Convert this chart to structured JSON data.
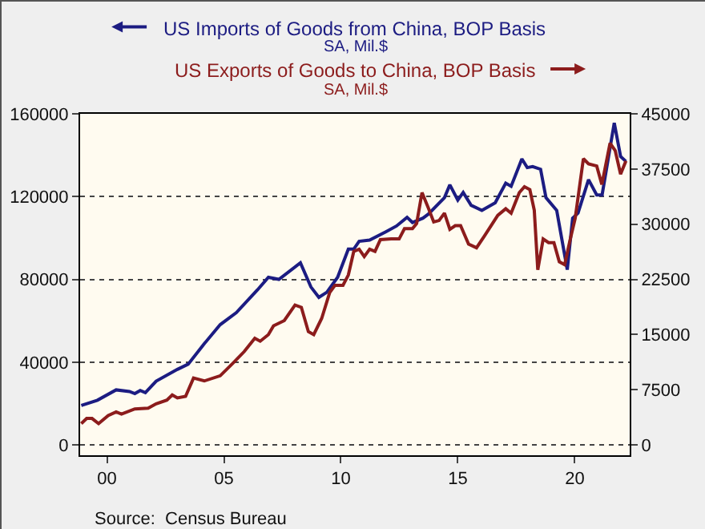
{
  "chart_data": {
    "type": "line",
    "series": [
      {
        "name": "US Imports of Goods from China, BOP Basis",
        "color": "#1c1c82",
        "x": [
          1998.9,
          1999.59,
          2000.39,
          2000.96,
          2001.19,
          2001.42,
          2001.64,
          2002.1,
          2003.01,
          2003.47,
          2004.16,
          2004.84,
          2005.53,
          2006.44,
          2006.9,
          2007.35,
          2008.27,
          2008.72,
          2009.06,
          2009.4,
          2009.86,
          2010.32,
          2010.55,
          2010.78,
          2011.23,
          2011.92,
          2012.38,
          2012.83,
          2013.06,
          2013.51,
          2013.74,
          2014.43,
          2014.66,
          2015.0,
          2015.23,
          2015.57,
          2016.03,
          2016.6,
          2017.05,
          2017.28,
          2017.74,
          2017.97,
          2018.2,
          2018.54,
          2018.77,
          2019.23,
          2019.68,
          2019.91,
          2020.14,
          2020.59,
          2020.94,
          2021.17,
          2021.69,
          2021.96,
          2022.19
        ],
        "values": [
          19100,
          21600,
          26600,
          25800,
          24800,
          26300,
          25300,
          30800,
          36500,
          39000,
          48900,
          58100,
          63900,
          75000,
          81000,
          80000,
          88000,
          76300,
          71300,
          73800,
          81000,
          94600,
          94600,
          98400,
          99000,
          103000,
          105800,
          110000,
          107500,
          109600,
          111500,
          119500,
          125700,
          118300,
          122000,
          115800,
          113300,
          117000,
          126500,
          125000,
          138200,
          134000,
          134500,
          133200,
          119500,
          113300,
          84700,
          109600,
          112000,
          128200,
          120800,
          120800,
          155600,
          139400,
          137000
        ]
      },
      {
        "name": "US Exports of Goods to China, BOP Basis",
        "color": "#8c1c1c",
        "axis": "y2",
        "x": [
          1998.9,
          1999.13,
          1999.36,
          1999.64,
          2000.05,
          2000.39,
          2000.62,
          2001.19,
          2001.76,
          2002.1,
          2002.56,
          2002.79,
          2003.01,
          2003.36,
          2003.7,
          2004.16,
          2004.84,
          2005.41,
          2005.87,
          2006.32,
          2006.55,
          2006.9,
          2007.12,
          2007.58,
          2008.04,
          2008.31,
          2008.61,
          2008.84,
          2009.18,
          2009.52,
          2009.75,
          2010.09,
          2010.32,
          2010.55,
          2010.78,
          2011.0,
          2011.23,
          2011.46,
          2011.69,
          2012.15,
          2012.49,
          2012.72,
          2013.06,
          2013.24,
          2013.47,
          2013.74,
          2013.97,
          2014.2,
          2014.43,
          2014.66,
          2014.89,
          2015.12,
          2015.46,
          2015.8,
          2016.14,
          2016.71,
          2017.05,
          2017.28,
          2017.63,
          2017.85,
          2018.08,
          2018.27,
          2018.42,
          2018.65,
          2018.88,
          2019.11,
          2019.34,
          2019.57,
          2019.79,
          2020.02,
          2020.37,
          2020.59,
          2020.94,
          2021.16,
          2021.51,
          2021.73,
          2021.96,
          2022.19
        ],
        "values": [
          2900,
          3600,
          3600,
          2900,
          4000,
          4500,
          4200,
          4900,
          5000,
          5600,
          6100,
          6800,
          6400,
          6600,
          9100,
          8700,
          9400,
          11200,
          12700,
          14500,
          14100,
          15000,
          16200,
          16900,
          19000,
          18700,
          15400,
          15000,
          17200,
          20700,
          21700,
          21700,
          23100,
          26300,
          26600,
          25600,
          26600,
          26300,
          27900,
          28000,
          28000,
          29400,
          29400,
          30100,
          34300,
          32200,
          30300,
          30500,
          31500,
          29300,
          29800,
          29800,
          27300,
          26800,
          28400,
          31200,
          32100,
          31500,
          34300,
          35100,
          34700,
          31900,
          23800,
          28000,
          27500,
          27500,
          24900,
          24500,
          27700,
          30800,
          38900,
          38200,
          37900,
          35400,
          41000,
          40000,
          36800,
          38600
        ]
      }
    ],
    "xlim": [
      1998.85,
      2022.35
    ],
    "xticks": [
      {
        "value": 2000,
        "label": "00"
      },
      {
        "value": 2005,
        "label": "05"
      },
      {
        "value": 2010,
        "label": "10"
      },
      {
        "value": 2015,
        "label": "15"
      },
      {
        "value": 2020,
        "label": "20"
      }
    ],
    "ylim": [
      -5000,
      160000
    ],
    "yticks": [
      0,
      40000,
      80000,
      120000,
      160000
    ],
    "y2lim": [
      -1400,
      45000
    ],
    "y2ticks": [
      0,
      7500,
      15000,
      22500,
      30000,
      37500,
      45000
    ],
    "grid": "y",
    "legend": "top",
    "marker": "none",
    "line_style": "solid",
    "annotations": [
      "SA, Mil.$",
      "SA, Mil.$",
      "Source:  Census Bureau"
    ]
  }
}
